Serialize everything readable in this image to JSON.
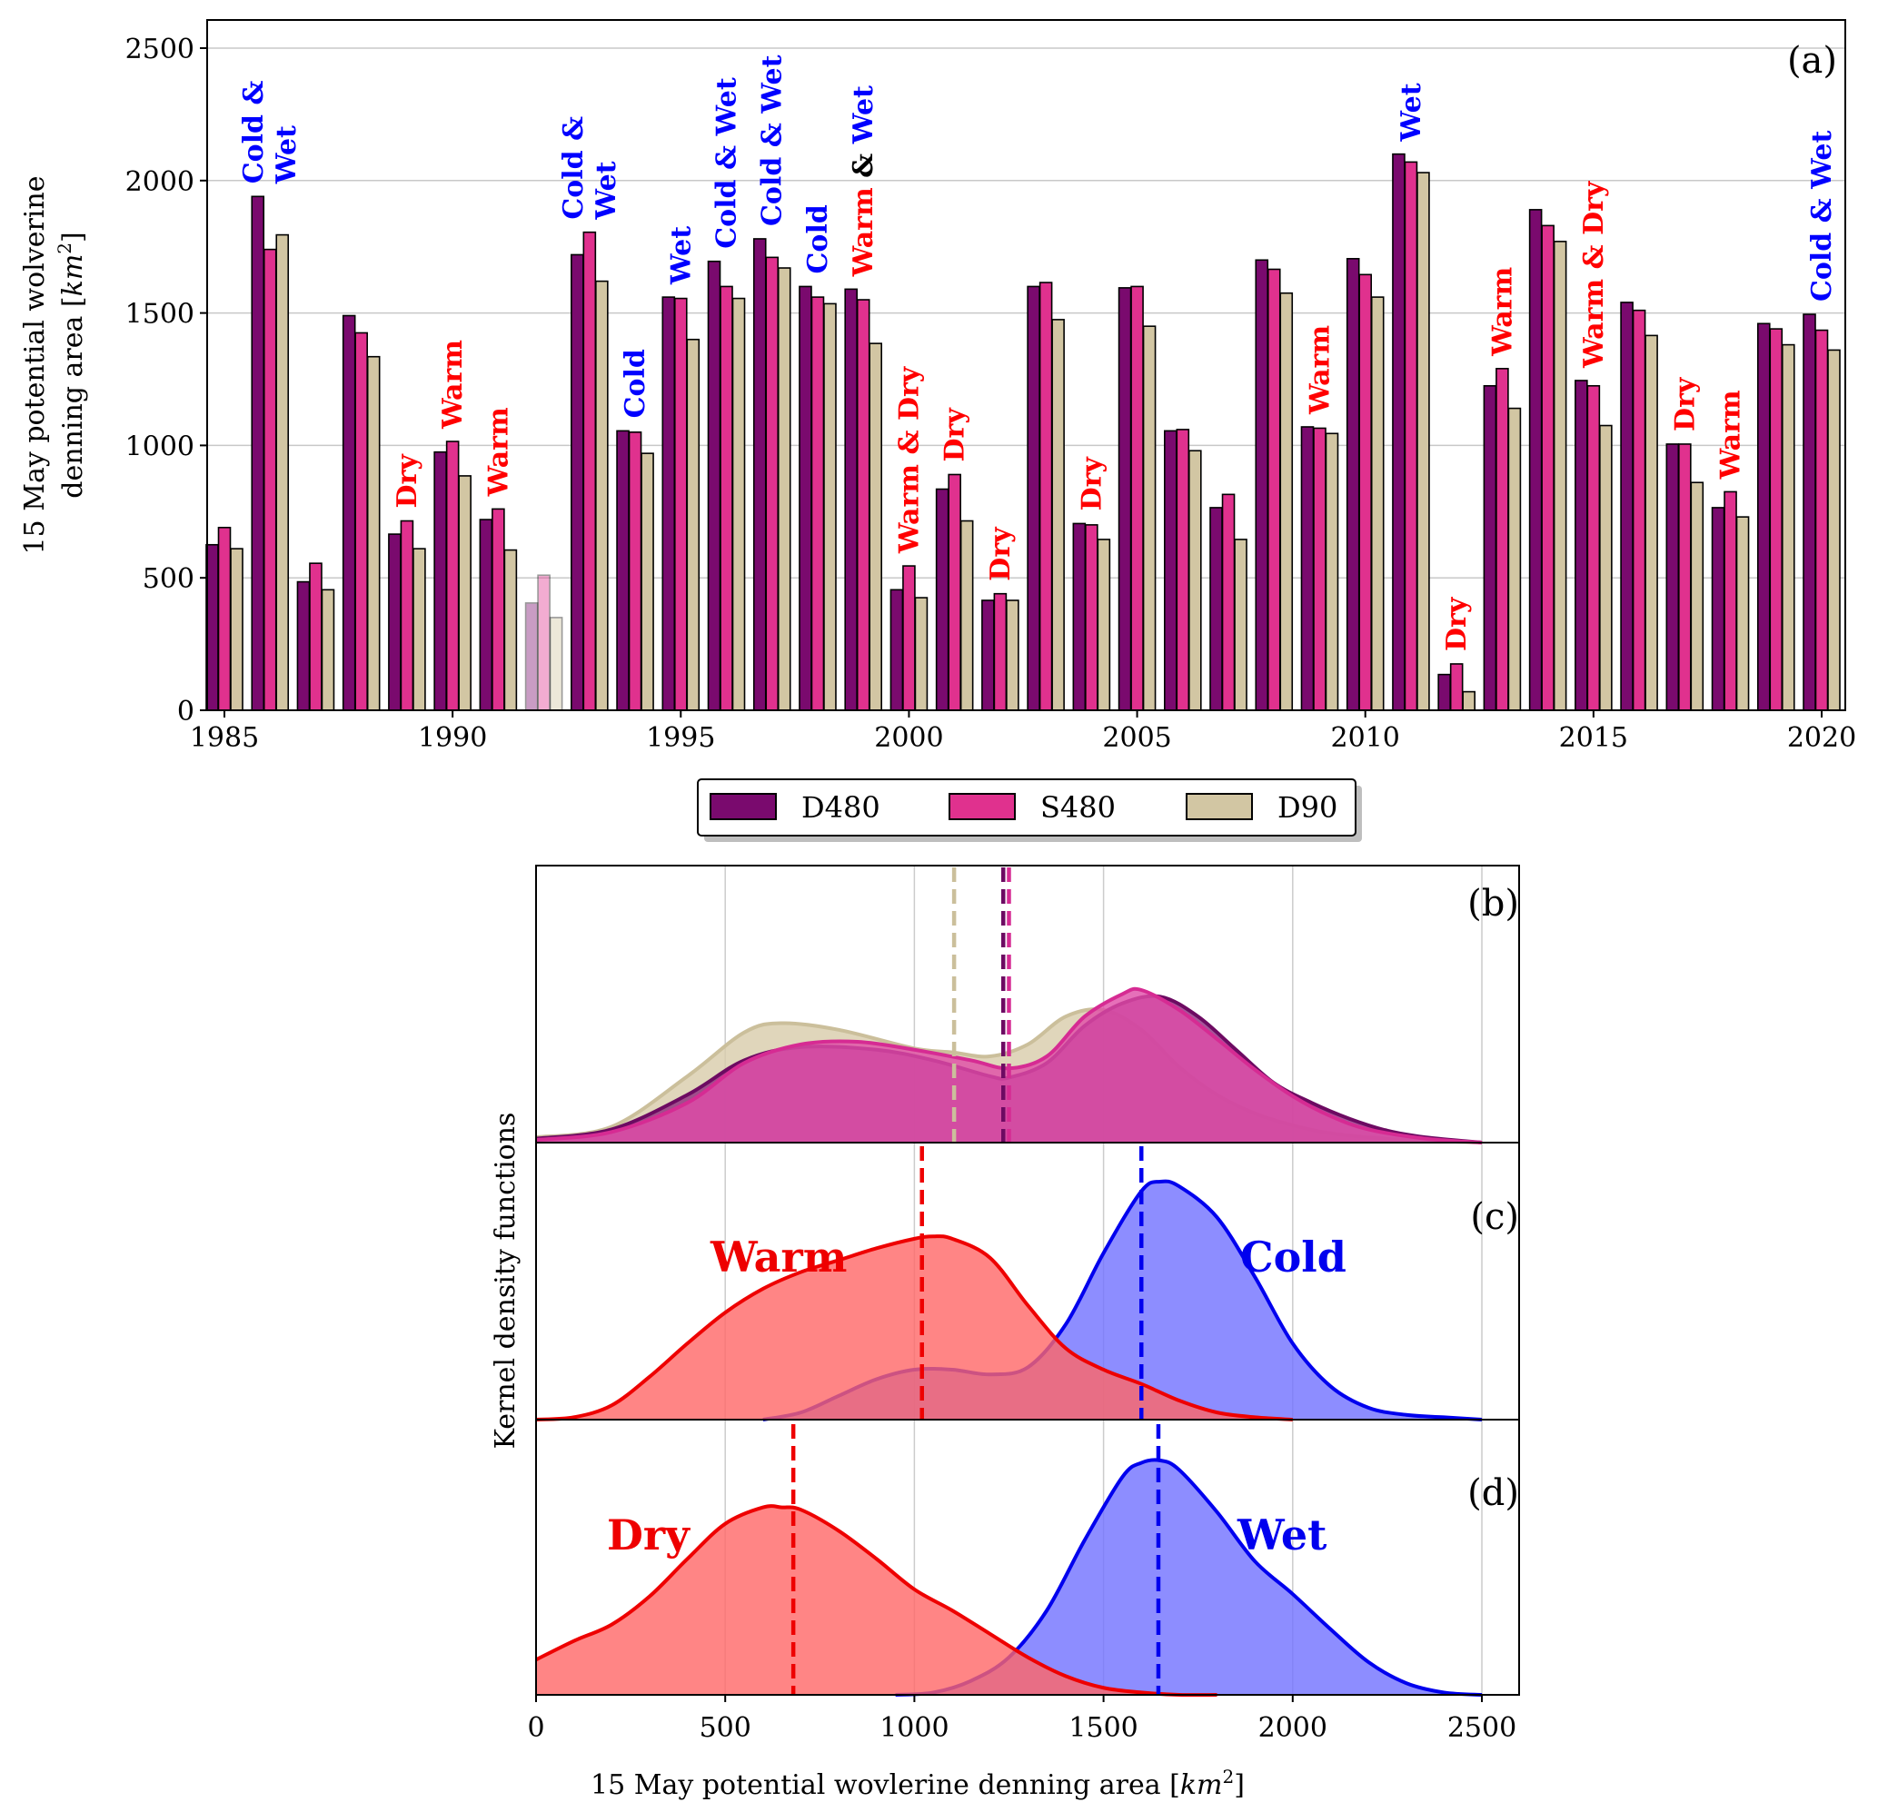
{
  "chart_data": [
    {
      "type": "bar",
      "panel": "(a)",
      "ylabel_line1": "15 May potential wolverine",
      "ylabel_line2": "denning area",
      "ylabel_unit": "km",
      "ylim": [
        0,
        2550
      ],
      "yticks": [
        0,
        500,
        1000,
        1500,
        2000,
        2500
      ],
      "xticks": [
        1985,
        1990,
        1995,
        2000,
        2005,
        2010,
        2015,
        2020
      ],
      "grid": "horizontal",
      "legend": {
        "position": "bottom-center",
        "entries": [
          "D480",
          "S480",
          "D90"
        ]
      },
      "colors": {
        "D480": "#7a0a6e",
        "S480": "#e0318e",
        "D90": "#d2c6a3",
        "warm": "#ff0000",
        "cold": "#0000ff",
        "neutral": "#000000"
      },
      "faded_year": 1992,
      "categories": [
        1985,
        1986,
        1987,
        1988,
        1989,
        1990,
        1991,
        1992,
        1993,
        1994,
        1995,
        1996,
        1997,
        1998,
        1999,
        2000,
        2001,
        2002,
        2003,
        2004,
        2005,
        2006,
        2007,
        2008,
        2009,
        2010,
        2011,
        2012,
        2013,
        2014,
        2015,
        2016,
        2017,
        2018,
        2019,
        2020
      ],
      "series": [
        {
          "name": "D480",
          "values": [
            625,
            1940,
            485,
            1490,
            665,
            975,
            720,
            405,
            1720,
            1055,
            1560,
            1695,
            1780,
            1600,
            1590,
            455,
            835,
            415,
            1600,
            705,
            1595,
            1055,
            765,
            1700,
            1070,
            1705,
            2100,
            135,
            1225,
            1890,
            1245,
            1540,
            1005,
            765,
            1460,
            1495
          ]
        },
        {
          "name": "S480",
          "values": [
            690,
            1740,
            555,
            1425,
            715,
            1015,
            760,
            510,
            1805,
            1050,
            1555,
            1600,
            1710,
            1560,
            1550,
            545,
            890,
            440,
            1615,
            700,
            1600,
            1060,
            815,
            1665,
            1065,
            1645,
            2070,
            175,
            1290,
            1830,
            1225,
            1510,
            1005,
            825,
            1440,
            1435
          ]
        },
        {
          "name": "D90",
          "values": [
            610,
            1795,
            455,
            1335,
            610,
            885,
            605,
            350,
            1620,
            970,
            1400,
            1555,
            1670,
            1535,
            1385,
            425,
            715,
            415,
            1475,
            645,
            1450,
            980,
            645,
            1575,
            1045,
            1560,
            2030,
            70,
            1140,
            1770,
            1075,
            1415,
            860,
            730,
            1380,
            1360
          ]
        }
      ],
      "annotations": [
        {
          "year": 1986,
          "rows": [
            [
              [
                "Cold &",
                "cold"
              ]
            ],
            [
              [
                "Wet",
                "cold"
              ]
            ]
          ]
        },
        {
          "year": 1989,
          "rows": [
            [
              [
                "Dry",
                "warm"
              ]
            ]
          ]
        },
        {
          "year": 1990,
          "rows": [
            [
              [
                "Warm",
                "warm"
              ]
            ]
          ]
        },
        {
          "year": 1991,
          "rows": [
            [
              [
                "Warm",
                "warm"
              ]
            ]
          ]
        },
        {
          "year": 1993,
          "rows": [
            [
              [
                "Cold &",
                "cold"
              ]
            ],
            [
              [
                "Wet",
                "cold"
              ]
            ]
          ]
        },
        {
          "year": 1994,
          "rows": [
            [
              [
                "Cold",
                "cold"
              ]
            ]
          ]
        },
        {
          "year": 1995,
          "rows": [
            [
              [
                "Wet",
                "cold"
              ]
            ]
          ]
        },
        {
          "year": 1996,
          "rows": [
            [
              [
                "Cold & Wet",
                "cold"
              ]
            ]
          ]
        },
        {
          "year": 1997,
          "rows": [
            [
              [
                "Cold & Wet",
                "cold"
              ]
            ]
          ]
        },
        {
          "year": 1998,
          "rows": [
            [
              [
                "Cold",
                "cold"
              ]
            ]
          ]
        },
        {
          "year": 1999,
          "rows": [
            [
              [
                "Warm",
                "warm"
              ],
              [
                " & ",
                "neutral"
              ],
              [
                "Wet",
                "cold"
              ]
            ]
          ]
        },
        {
          "year": 2000,
          "rows": [
            [
              [
                "Warm & Dry",
                "warm"
              ]
            ]
          ]
        },
        {
          "year": 2001,
          "rows": [
            [
              [
                "Dry",
                "warm"
              ]
            ]
          ]
        },
        {
          "year": 2002,
          "rows": [
            [
              [
                "Dry",
                "warm"
              ]
            ]
          ]
        },
        {
          "year": 2004,
          "rows": [
            [
              [
                "Dry",
                "warm"
              ]
            ]
          ]
        },
        {
          "year": 2009,
          "rows": [
            [
              [
                "Warm",
                "warm"
              ]
            ]
          ]
        },
        {
          "year": 2011,
          "rows": [
            [
              [
                "Wet",
                "cold"
              ]
            ]
          ]
        },
        {
          "year": 2012,
          "rows": [
            [
              [
                "Dry",
                "warm"
              ]
            ]
          ]
        },
        {
          "year": 2013,
          "rows": [
            [
              [
                "Warm",
                "warm"
              ]
            ]
          ]
        },
        {
          "year": 2015,
          "rows": [
            [
              [
                "Warm & Dry",
                "warm"
              ]
            ]
          ]
        },
        {
          "year": 2017,
          "rows": [
            [
              [
                "Dry",
                "warm"
              ]
            ]
          ]
        },
        {
          "year": 2018,
          "rows": [
            [
              [
                "Warm",
                "warm"
              ]
            ]
          ]
        },
        {
          "year": 2020,
          "rows": [
            [
              [
                "Cold & Wet",
                "cold"
              ]
            ]
          ]
        }
      ]
    },
    {
      "type": "area",
      "panel": "(b)",
      "xlim": [
        0,
        2600
      ],
      "series": [
        {
          "name": "D90",
          "color": "#cbbf9b",
          "fill": "#d8ccaa",
          "mean": 1105,
          "x": [
            0,
            200,
            400,
            550,
            650,
            800,
            1000,
            1100,
            1200,
            1300,
            1400,
            1500,
            1600,
            1700,
            1800,
            1900,
            2000,
            2100,
            2200,
            2300,
            2400,
            2500
          ],
          "y": [
            0.04,
            0.12,
            0.5,
            0.83,
            0.9,
            0.85,
            0.71,
            0.68,
            0.65,
            0.74,
            0.95,
            1.0,
            0.85,
            0.57,
            0.36,
            0.22,
            0.13,
            0.07,
            0.04,
            0.02,
            0.01,
            0.0
          ]
        },
        {
          "name": "D480",
          "color": "#6d0a62",
          "fill": "#8f2a80",
          "mean": 1235,
          "x": [
            0,
            200,
            400,
            550,
            700,
            900,
            1050,
            1200,
            1250,
            1350,
            1450,
            1550,
            1650,
            1750,
            1850,
            1950,
            2050,
            2150,
            2250,
            2350,
            2500
          ],
          "y": [
            0.03,
            0.1,
            0.36,
            0.62,
            0.72,
            0.7,
            0.62,
            0.5,
            0.49,
            0.6,
            0.88,
            1.05,
            1.1,
            0.95,
            0.7,
            0.45,
            0.3,
            0.18,
            0.09,
            0.04,
            0.0
          ]
        },
        {
          "name": "S480",
          "color": "#d62b93",
          "fill": "#e04ca8",
          "mean": 1250,
          "x": [
            0,
            200,
            400,
            550,
            700,
            850,
            1000,
            1150,
            1250,
            1350,
            1450,
            1550,
            1600,
            1700,
            1800,
            1900,
            2000,
            2100,
            2200,
            2350,
            2500
          ],
          "y": [
            0.02,
            0.08,
            0.3,
            0.6,
            0.74,
            0.76,
            0.7,
            0.62,
            0.56,
            0.65,
            0.95,
            1.12,
            1.15,
            1.0,
            0.78,
            0.55,
            0.35,
            0.2,
            0.1,
            0.03,
            0.0
          ]
        }
      ]
    },
    {
      "type": "area",
      "panel": "(c)",
      "xlim": [
        0,
        2600
      ],
      "series": [
        {
          "name": "Cold",
          "color": "#0000ee",
          "fill": "#7070ff",
          "mean": 1600,
          "x": [
            600,
            700,
            800,
            900,
            1000,
            1100,
            1200,
            1300,
            1400,
            1500,
            1600,
            1650,
            1700,
            1800,
            1900,
            2000,
            2100,
            2200,
            2300,
            2400,
            2500
          ],
          "y": [
            0.0,
            0.03,
            0.1,
            0.17,
            0.21,
            0.21,
            0.19,
            0.22,
            0.4,
            0.7,
            0.96,
            1.0,
            0.98,
            0.85,
            0.6,
            0.32,
            0.14,
            0.05,
            0.02,
            0.01,
            0.0
          ]
        },
        {
          "name": "Warm",
          "color": "#ee0000",
          "fill": "#ff6666",
          "mean": 1020,
          "x": [
            0,
            100,
            200,
            300,
            400,
            500,
            600,
            700,
            800,
            900,
            1000,
            1050,
            1100,
            1200,
            1300,
            1400,
            1500,
            1600,
            1700,
            1800,
            1900,
            2000
          ],
          "y": [
            0.0,
            0.01,
            0.06,
            0.18,
            0.32,
            0.45,
            0.55,
            0.62,
            0.67,
            0.72,
            0.76,
            0.77,
            0.76,
            0.68,
            0.48,
            0.3,
            0.21,
            0.15,
            0.08,
            0.03,
            0.01,
            0.0
          ]
        }
      ],
      "labels": [
        "Warm",
        "Cold"
      ]
    },
    {
      "type": "area",
      "panel": "(d)",
      "xlim": [
        0,
        2600
      ],
      "series": [
        {
          "name": "Wet",
          "color": "#0000ee",
          "fill": "#7070ff",
          "mean": 1645,
          "x": [
            950,
            1050,
            1150,
            1250,
            1350,
            1450,
            1550,
            1600,
            1650,
            1700,
            1800,
            1900,
            2000,
            2100,
            2200,
            2300,
            2400,
            2500
          ],
          "y": [
            0.0,
            0.01,
            0.06,
            0.16,
            0.36,
            0.66,
            0.93,
            0.99,
            1.0,
            0.96,
            0.78,
            0.57,
            0.43,
            0.28,
            0.14,
            0.05,
            0.01,
            0.0
          ]
        },
        {
          "name": "Dry",
          "color": "#ee0000",
          "fill": "#ff6666",
          "mean": 680,
          "x": [
            0,
            100,
            200,
            300,
            400,
            500,
            600,
            650,
            700,
            800,
            900,
            1000,
            1100,
            1200,
            1300,
            1400,
            1500,
            1600,
            1700,
            1800
          ],
          "y": [
            0.15,
            0.23,
            0.3,
            0.42,
            0.58,
            0.73,
            0.8,
            0.8,
            0.79,
            0.7,
            0.58,
            0.45,
            0.36,
            0.26,
            0.16,
            0.08,
            0.03,
            0.01,
            0.0,
            0.0
          ]
        }
      ],
      "labels": [
        "Dry",
        "Wet"
      ]
    }
  ],
  "kde_axes": {
    "ylabel": "Kernel density functions",
    "xlabel_text": "15 May potential wovlerine denning area",
    "xlabel_unit": "km",
    "xticks": [
      0,
      500,
      1000,
      1500,
      2000,
      2500
    ],
    "grid": "vertical"
  },
  "text": {
    "legend_d480": "D480",
    "legend_s480": "S480",
    "legend_d90": "D90",
    "label_warm": "Warm",
    "label_cold": "Cold",
    "label_dry": "Dry",
    "label_wet": "Wet",
    "tag_a": "(a)",
    "tag_b": "(b)",
    "tag_c": "(c)",
    "tag_d": "(d)",
    "exp2": "2"
  }
}
